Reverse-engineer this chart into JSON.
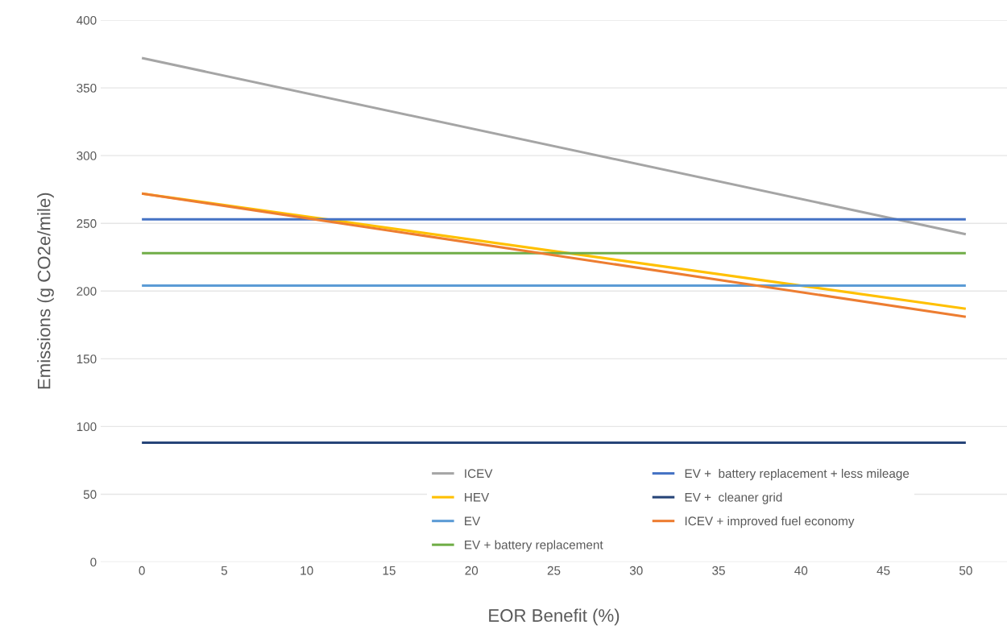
{
  "chart_data": {
    "type": "line",
    "xlabel": "EOR Benefit (%)",
    "ylabel": "Emissions (g CO2e/mile)",
    "x": [
      0,
      50
    ],
    "xlim": [
      -2.5,
      52.5
    ],
    "xticks": [
      0,
      5,
      10,
      15,
      20,
      25,
      30,
      35,
      40,
      45,
      50
    ],
    "ylim": [
      0,
      400
    ],
    "yticks": [
      0,
      50,
      100,
      150,
      200,
      250,
      300,
      350,
      400
    ],
    "grid": "y",
    "legend": "bottom right",
    "marker": "none",
    "line_style": "solid",
    "series": [
      {
        "name": "ICEV",
        "color": "#a5a5a5",
        "values": [
          372,
          242
        ]
      },
      {
        "name": "HEV",
        "color": "#ffc000",
        "values": [
          272,
          187
        ]
      },
      {
        "name": "EV",
        "color": "#5b9bd5",
        "values": [
          204,
          204
        ]
      },
      {
        "name": "EV + battery replacement",
        "color": "#70ad47",
        "values": [
          228,
          228
        ]
      },
      {
        "name": "EV +  battery replacement + less mileage",
        "color": "#4472c4",
        "values": [
          253,
          253
        ]
      },
      {
        "name": "EV +  cleaner grid",
        "color": "#264478",
        "values": [
          88,
          88
        ]
      },
      {
        "name": "ICEV + improved fuel economy",
        "color": "#ed7d31",
        "values": [
          272,
          181
        ]
      }
    ]
  }
}
